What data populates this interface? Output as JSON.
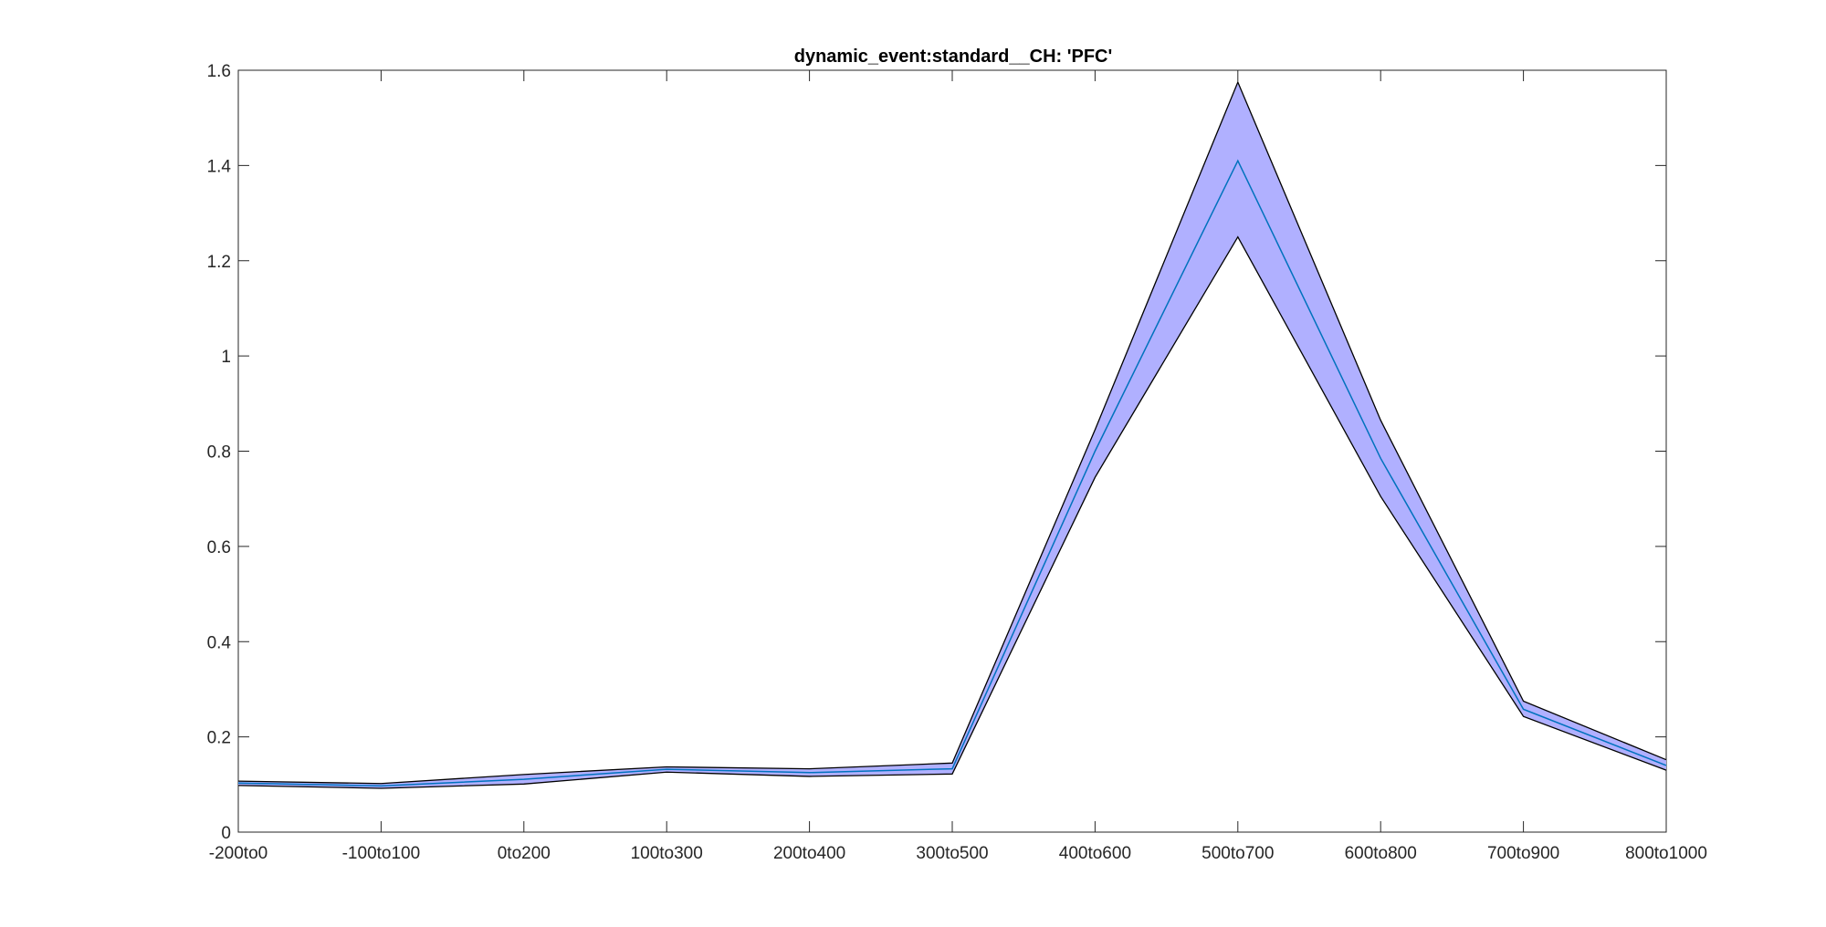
{
  "chart_data": {
    "type": "area",
    "title": "dynamic_event:standard__CH: 'PFC'",
    "xlabel": "",
    "ylabel": "",
    "categories": [
      "-200to0",
      "-100to100",
      "0to200",
      "100to300",
      "200to400",
      "300to500",
      "400to600",
      "500to700",
      "600to800",
      "700to900",
      "800to1000"
    ],
    "ylim": [
      0,
      1.6
    ],
    "yticks": [
      "0",
      "0.2",
      "0.4",
      "0.6",
      "0.8",
      "1",
      "1.2",
      "1.4",
      "1.6"
    ],
    "grid": false,
    "legend": "none",
    "series": [
      {
        "role": "mean",
        "values": [
          0.103,
          0.097,
          0.111,
          0.132,
          0.125,
          0.133,
          0.8,
          1.41,
          0.785,
          0.258,
          0.14
        ]
      },
      {
        "role": "upper",
        "values": [
          0.107,
          0.102,
          0.121,
          0.137,
          0.133,
          0.145,
          0.845,
          1.575,
          0.865,
          0.275,
          0.152
        ]
      },
      {
        "role": "lower",
        "values": [
          0.098,
          0.092,
          0.101,
          0.126,
          0.117,
          0.122,
          0.745,
          1.25,
          0.705,
          0.243,
          0.13
        ]
      }
    ],
    "colors": {
      "band_fill": "#b0b0ff",
      "band_edge": "#000000",
      "mean_line": "#0072bd",
      "axis": "#262626"
    }
  }
}
